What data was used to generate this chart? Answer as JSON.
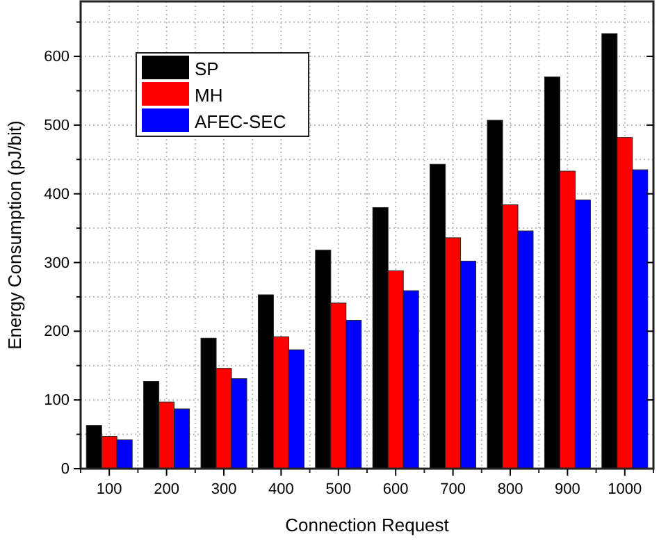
{
  "chart_data": {
    "type": "bar",
    "xlabel": "Connection Request",
    "ylabel": "Energy Consumption (pJ/bit)",
    "categories": [
      "100",
      "200",
      "300",
      "400",
      "500",
      "600",
      "700",
      "800",
      "900",
      "1000"
    ],
    "series": [
      {
        "name": "SP",
        "color": "#000000",
        "values": [
          63,
          127,
          190,
          253,
          318,
          380,
          443,
          507,
          570,
          633
        ]
      },
      {
        "name": "MH",
        "color": "#ff0000",
        "values": [
          47,
          97,
          146,
          192,
          241,
          288,
          336,
          384,
          433,
          482
        ]
      },
      {
        "name": "AFEC-SEC",
        "color": "#0000ff",
        "values": [
          42,
          87,
          131,
          173,
          216,
          259,
          302,
          346,
          391,
          435
        ]
      }
    ],
    "ylim": [
      0,
      680
    ],
    "yticks": [
      0,
      100,
      200,
      300,
      400,
      500,
      600
    ],
    "grid": true,
    "legend": "top left"
  }
}
